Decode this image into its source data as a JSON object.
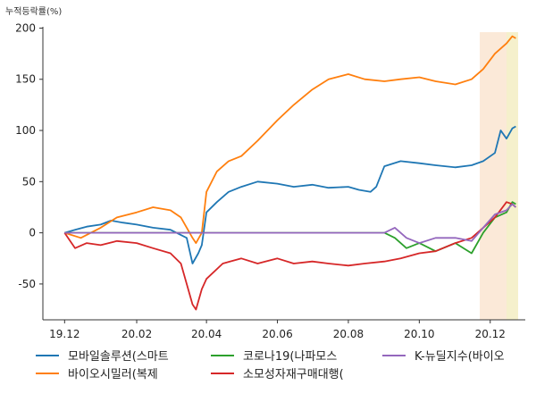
{
  "chart_data": {
    "type": "line",
    "ylabel": "누적등락률(%)",
    "ylim": [
      -85,
      210
    ],
    "yticks": [
      -50,
      0,
      50,
      100,
      150,
      200
    ],
    "xlim": [
      "2019-11-20",
      "2020-12-25"
    ],
    "xticks": [
      {
        "date": "2019-12-01",
        "label": "19.12"
      },
      {
        "date": "2020-02-01",
        "label": "20.02"
      },
      {
        "date": "2020-04-01",
        "label": "20.04"
      },
      {
        "date": "2020-06-01",
        "label": "20.06"
      },
      {
        "date": "2020-08-01",
        "label": "20.08"
      },
      {
        "date": "2020-10-01",
        "label": "20.10"
      },
      {
        "date": "2020-12-01",
        "label": "20.12"
      }
    ],
    "highlights": [
      {
        "from": "2020-11-22",
        "to": "2020-12-25",
        "color": "#fbe9d8"
      },
      {
        "from": "2020-12-15",
        "to": "2020-12-25",
        "color": "#f5f0cc"
      }
    ],
    "series": [
      {
        "name": "모바일솔루션(스마트",
        "color": "#1f77b4",
        "points": [
          [
            "2019-12-01",
            0
          ],
          [
            "2019-12-10",
            3
          ],
          [
            "2019-12-20",
            6
          ],
          [
            "2020-01-01",
            8
          ],
          [
            "2020-01-10",
            12
          ],
          [
            "2020-01-20",
            10
          ],
          [
            "2020-02-01",
            8
          ],
          [
            "2020-02-15",
            5
          ],
          [
            "2020-03-01",
            3
          ],
          [
            "2020-03-15",
            -5
          ],
          [
            "2020-03-20",
            -30
          ],
          [
            "2020-03-25",
            -20
          ],
          [
            "2020-03-28",
            -12
          ],
          [
            "2020-04-01",
            20
          ],
          [
            "2020-04-10",
            30
          ],
          [
            "2020-04-20",
            40
          ],
          [
            "2020-05-01",
            45
          ],
          [
            "2020-05-15",
            50
          ],
          [
            "2020-06-01",
            48
          ],
          [
            "2020-06-15",
            45
          ],
          [
            "2020-07-01",
            47
          ],
          [
            "2020-07-15",
            44
          ],
          [
            "2020-08-01",
            45
          ],
          [
            "2020-08-10",
            42
          ],
          [
            "2020-08-20",
            40
          ],
          [
            "2020-08-25",
            45
          ],
          [
            "2020-09-01",
            65
          ],
          [
            "2020-09-15",
            70
          ],
          [
            "2020-10-01",
            68
          ],
          [
            "2020-10-15",
            66
          ],
          [
            "2020-11-01",
            64
          ],
          [
            "2020-11-15",
            66
          ],
          [
            "2020-11-25",
            70
          ],
          [
            "2020-12-05",
            78
          ],
          [
            "2020-12-10",
            100
          ],
          [
            "2020-12-15",
            92
          ],
          [
            "2020-12-20",
            102
          ],
          [
            "2020-12-23",
            104
          ]
        ]
      },
      {
        "name": "바이오시밀러(복제",
        "color": "#ff7f0e",
        "points": [
          [
            "2019-12-01",
            0
          ],
          [
            "2019-12-15",
            -5
          ],
          [
            "2020-01-01",
            5
          ],
          [
            "2020-01-15",
            15
          ],
          [
            "2020-02-01",
            20
          ],
          [
            "2020-02-15",
            25
          ],
          [
            "2020-03-01",
            22
          ],
          [
            "2020-03-10",
            15
          ],
          [
            "2020-03-20",
            -5
          ],
          [
            "2020-03-23",
            -10
          ],
          [
            "2020-03-28",
            0
          ],
          [
            "2020-04-01",
            40
          ],
          [
            "2020-04-10",
            60
          ],
          [
            "2020-04-20",
            70
          ],
          [
            "2020-05-01",
            75
          ],
          [
            "2020-05-15",
            90
          ],
          [
            "2020-06-01",
            110
          ],
          [
            "2020-06-15",
            125
          ],
          [
            "2020-07-01",
            140
          ],
          [
            "2020-07-15",
            150
          ],
          [
            "2020-08-01",
            155
          ],
          [
            "2020-08-15",
            150
          ],
          [
            "2020-09-01",
            148
          ],
          [
            "2020-09-15",
            150
          ],
          [
            "2020-10-01",
            152
          ],
          [
            "2020-10-15",
            148
          ],
          [
            "2020-11-01",
            145
          ],
          [
            "2020-11-15",
            150
          ],
          [
            "2020-11-25",
            160
          ],
          [
            "2020-12-05",
            175
          ],
          [
            "2020-12-15",
            185
          ],
          [
            "2020-12-20",
            192
          ],
          [
            "2020-12-23",
            190
          ]
        ]
      },
      {
        "name": "코로나19(나파모스",
        "color": "#2ca02c",
        "points": [
          [
            "2019-12-01",
            0
          ],
          [
            "2020-09-01",
            0
          ],
          [
            "2020-09-10",
            -5
          ],
          [
            "2020-09-20",
            -15
          ],
          [
            "2020-10-01",
            -10
          ],
          [
            "2020-10-15",
            -18
          ],
          [
            "2020-11-01",
            -10
          ],
          [
            "2020-11-15",
            -20
          ],
          [
            "2020-11-25",
            0
          ],
          [
            "2020-12-05",
            15
          ],
          [
            "2020-12-15",
            20
          ],
          [
            "2020-12-20",
            30
          ],
          [
            "2020-12-23",
            28
          ]
        ]
      },
      {
        "name": "소모성자재구매대행(",
        "color": "#d62728",
        "points": [
          [
            "2019-12-01",
            0
          ],
          [
            "2019-12-10",
            -15
          ],
          [
            "2019-12-20",
            -10
          ],
          [
            "2020-01-01",
            -12
          ],
          [
            "2020-01-15",
            -8
          ],
          [
            "2020-02-01",
            -10
          ],
          [
            "2020-02-15",
            -15
          ],
          [
            "2020-03-01",
            -20
          ],
          [
            "2020-03-10",
            -30
          ],
          [
            "2020-03-20",
            -70
          ],
          [
            "2020-03-23",
            -75
          ],
          [
            "2020-03-28",
            -55
          ],
          [
            "2020-04-01",
            -45
          ],
          [
            "2020-04-15",
            -30
          ],
          [
            "2020-05-01",
            -25
          ],
          [
            "2020-05-15",
            -30
          ],
          [
            "2020-06-01",
            -25
          ],
          [
            "2020-06-15",
            -30
          ],
          [
            "2020-07-01",
            -28
          ],
          [
            "2020-07-15",
            -30
          ],
          [
            "2020-08-01",
            -32
          ],
          [
            "2020-08-15",
            -30
          ],
          [
            "2020-09-01",
            -28
          ],
          [
            "2020-09-15",
            -25
          ],
          [
            "2020-10-01",
            -20
          ],
          [
            "2020-10-15",
            -18
          ],
          [
            "2020-11-01",
            -10
          ],
          [
            "2020-11-15",
            -5
          ],
          [
            "2020-11-25",
            5
          ],
          [
            "2020-12-05",
            15
          ],
          [
            "2020-12-15",
            30
          ],
          [
            "2020-12-20",
            28
          ],
          [
            "2020-12-23",
            25
          ]
        ]
      },
      {
        "name": "K-뉴딜지수(바이오",
        "color": "#9467bd",
        "points": [
          [
            "2019-12-01",
            0
          ],
          [
            "2020-09-01",
            0
          ],
          [
            "2020-09-10",
            5
          ],
          [
            "2020-09-20",
            -5
          ],
          [
            "2020-10-01",
            -10
          ],
          [
            "2020-10-15",
            -5
          ],
          [
            "2020-11-01",
            -5
          ],
          [
            "2020-11-15",
            -8
          ],
          [
            "2020-11-25",
            5
          ],
          [
            "2020-12-05",
            18
          ],
          [
            "2020-12-15",
            22
          ],
          [
            "2020-12-20",
            28
          ],
          [
            "2020-12-23",
            25
          ]
        ]
      }
    ]
  }
}
